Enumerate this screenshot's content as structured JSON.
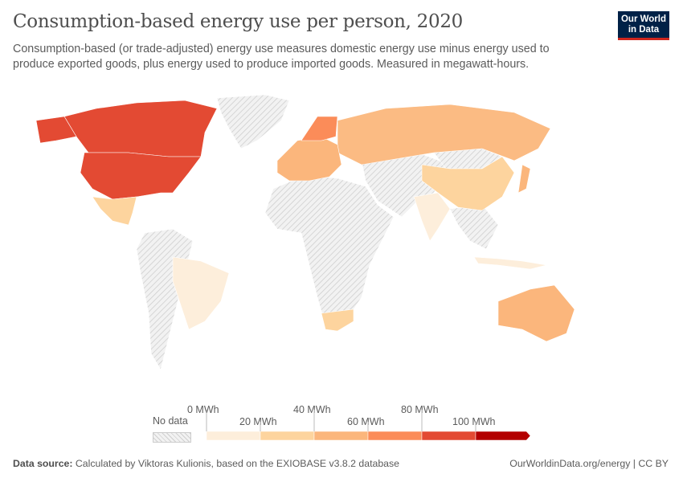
{
  "header": {
    "title": "Consumption-based energy use per person, 2020",
    "subtitle": "Consumption-based (or trade-adjusted) energy use measures domestic energy use minus energy used to produce exported goods, plus energy used to produce imported goods. Measured in megawatt-hours.",
    "logo": "Our World in Data"
  },
  "legend": {
    "no_data_label": "No data",
    "no_data_color": "#e8e8e8",
    "ticks": [
      "0 MWh",
      "20 MWh",
      "40 MWh",
      "60 MWh",
      "80 MWh",
      "100 MWh"
    ],
    "bins": [
      {
        "range": "0–20",
        "color": "#fdeedb"
      },
      {
        "range": "20–40",
        "color": "#fdd49e"
      },
      {
        "range": "40–60",
        "color": "#fbb67c"
      },
      {
        "range": "60–80",
        "color": "#fb8c59"
      },
      {
        "range": "80–100",
        "color": "#e34a33"
      },
      {
        "range": ">100",
        "color": "#b30000"
      }
    ]
  },
  "map_data": {
    "United States": "80–100",
    "Canada": "80–100",
    "Mexico": "20–40",
    "Brazil": "0–20",
    "Russia": "40–60",
    "China": "20–40",
    "India": "0–20",
    "Australia": "40–60",
    "South Africa": "20–40",
    "Indonesia": "0–20",
    "Japan": "40–60",
    "Norway": "60–80",
    "Finland": "60–80"
  },
  "footer": {
    "source_label": "Data source:",
    "source_text": "Calculated by Viktoras Kulionis, based on the EXIOBASE v3.8.2 database",
    "link": "OurWorldinData.org/energy | CC BY"
  }
}
